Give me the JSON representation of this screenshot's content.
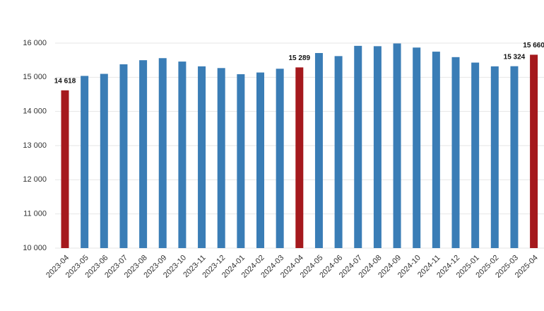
{
  "chart_data": {
    "type": "bar",
    "categories": [
      "2023-04",
      "2023-05",
      "2023-06",
      "2023-07",
      "2023-08",
      "2023-09",
      "2023-10",
      "2023-11",
      "2023-12",
      "2024-01",
      "2024-02",
      "2024-03",
      "2024-04",
      "2024-05",
      "2024-06",
      "2024-07",
      "2024-08",
      "2024-09",
      "2024-10",
      "2024-11",
      "2024-12",
      "2025-01",
      "2025-02",
      "2025-03",
      "2025-04"
    ],
    "values": [
      14618,
      15040,
      15100,
      15380,
      15500,
      15560,
      15460,
      15320,
      15270,
      15090,
      15140,
      15250,
      15289,
      15710,
      15620,
      15920,
      15910,
      15990,
      15870,
      15750,
      15590,
      15430,
      15320,
      15324,
      15660
    ],
    "value_labels": [
      "14 618",
      null,
      null,
      null,
      null,
      null,
      null,
      null,
      null,
      null,
      null,
      null,
      "15 289",
      null,
      null,
      null,
      null,
      null,
      null,
      null,
      null,
      null,
      null,
      "15 324",
      "15 660"
    ],
    "colors": [
      "#a5191d",
      "#3a7db6",
      "#3a7db6",
      "#3a7db6",
      "#3a7db6",
      "#3a7db6",
      "#3a7db6",
      "#3a7db6",
      "#3a7db6",
      "#3a7db6",
      "#3a7db6",
      "#3a7db6",
      "#a5191d",
      "#3a7db6",
      "#3a7db6",
      "#3a7db6",
      "#3a7db6",
      "#3a7db6",
      "#3a7db6",
      "#3a7db6",
      "#3a7db6",
      "#3a7db6",
      "#3a7db6",
      "#3a7db6",
      "#a5191d"
    ],
    "ylim": [
      10000,
      16000
    ],
    "yticks": [
      {
        "value": 10000,
        "label": "10 000"
      },
      {
        "value": 11000,
        "label": "11 000"
      },
      {
        "value": 12000,
        "label": "12 000"
      },
      {
        "value": 13000,
        "label": "13 000"
      },
      {
        "value": 14000,
        "label": "14 000"
      },
      {
        "value": 15000,
        "label": "15 000"
      },
      {
        "value": 16000,
        "label": "16 000"
      }
    ],
    "grid": true
  }
}
